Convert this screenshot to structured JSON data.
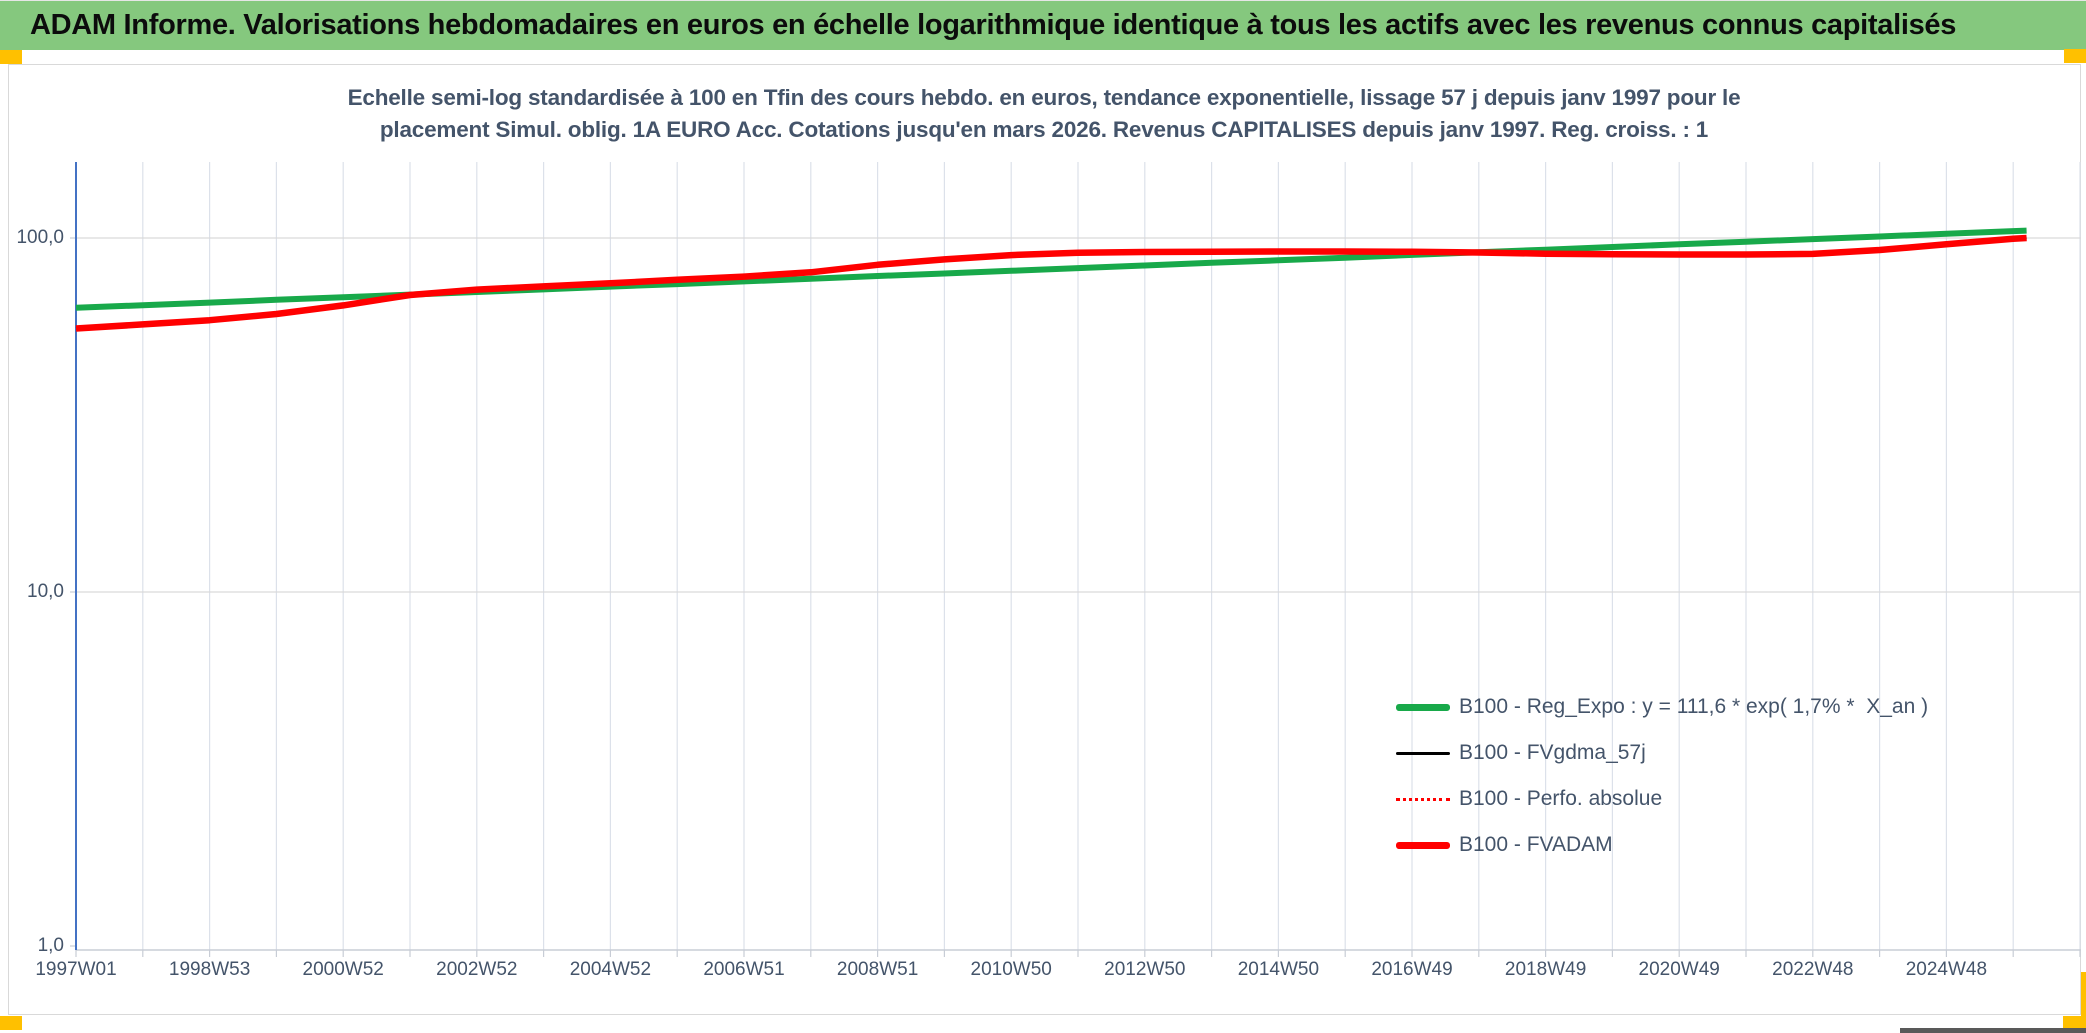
{
  "header": {
    "title": "ADAM Informe. Valorisations hebdomadaires en euros en échelle logarithmique identique à tous les actifs avec les revenus connus capitalisés"
  },
  "chart": {
    "title_line1": "Echelle semi-log standardisée à 100 en Tfin des cours hebdo. en euros, tendance exponentielle, lissage 57 j depuis janv 1997 pour le",
    "title_line2": "placement Simul. oblig. 1A EURO Acc. Cotations jusqu'en mars 2026. Revenus CAPITALISES depuis janv 1997. Reg. croiss. : 1"
  },
  "colors": {
    "header_bg": "#85C87E",
    "marker_yellow": "#FFC000",
    "heading_text": "#44546A",
    "axis_text": "#44546A",
    "axis_line_blue": "#4472C4",
    "axis_line_gray": "#C8CDD6",
    "grid_vertical": "#DCE1EA",
    "grid_horizontal": "#D9D9D9",
    "series_green": "#18A94A",
    "series_red": "#FF0000",
    "series_black": "#000000"
  },
  "chart_data": {
    "type": "line",
    "x_scale": "time-weekly",
    "y_scale": "log",
    "grid": true,
    "legend_position": "inside-right-lower",
    "y_axis": {
      "ticks": [
        {
          "label": "100,0",
          "value": 100
        },
        {
          "label": "10,0",
          "value": 10
        },
        {
          "label": "1,0",
          "value": 1
        }
      ],
      "range": [
        1,
        160
      ]
    },
    "x_axis": {
      "ticks": [
        {
          "label": "1997W01",
          "year": 1997
        },
        {
          "label": "1998W53",
          "year": 1999
        },
        {
          "label": "2000W52",
          "year": 2001
        },
        {
          "label": "2002W52",
          "year": 2003
        },
        {
          "label": "2004W52",
          "year": 2005
        },
        {
          "label": "2006W51",
          "year": 2007
        },
        {
          "label": "2008W51",
          "year": 2009
        },
        {
          "label": "2010W50",
          "year": 2011
        },
        {
          "label": "2012W50",
          "year": 2013
        },
        {
          "label": "2014W50",
          "year": 2015
        },
        {
          "label": "2016W49",
          "year": 2017
        },
        {
          "label": "2018W49",
          "year": 2019
        },
        {
          "label": "2020W49",
          "year": 2021
        },
        {
          "label": "2022W48",
          "year": 2023
        },
        {
          "label": "2024W48",
          "year": 2025
        }
      ],
      "gridline_years": [
        1997,
        2027
      ],
      "range_years": [
        1997,
        2027.05
      ]
    },
    "x_years": [
      1997,
      1998,
      1999,
      2000,
      2001,
      2002,
      2003,
      2004,
      2005,
      2006,
      2007,
      2008,
      2009,
      2010,
      2011,
      2012,
      2013,
      2014,
      2015,
      2016,
      2017,
      2018,
      2019,
      2020,
      2021,
      2022,
      2023,
      2024,
      2025,
      2026,
      2026.2
    ],
    "series": [
      {
        "name": "B100 - Reg_Expo : y = 111,6 * exp( 1,7% *  X_an )",
        "color": "#18A94A",
        "style": "solid",
        "thickness": 6,
        "values": [
          63.5,
          64.6,
          65.7,
          66.9,
          68.0,
          69.2,
          70.4,
          71.6,
          72.9,
          74.1,
          75.4,
          76.7,
          78.1,
          79.4,
          80.8,
          82.2,
          83.6,
          85.1,
          86.5,
          88.0,
          89.6,
          91.1,
          92.7,
          94.3,
          96.0,
          97.6,
          99.3,
          101.0,
          102.8,
          104.6,
          104.9
        ]
      },
      {
        "name": "B100 - FVgdma_57j",
        "color": "#000000",
        "style": "solid",
        "thickness": 2.5,
        "coincides_with": "B100 - FVADAM"
      },
      {
        "name": "B100 - Perfo. absolue",
        "color": "#FF0000",
        "style": "dotted",
        "thickness": 2,
        "coincides_with": "B100 - FVADAM"
      },
      {
        "name": "B100 - FVADAM",
        "color": "#FF0000",
        "style": "solid",
        "thickness": 6.5,
        "values": [
          55.5,
          57.0,
          58.6,
          61.0,
          64.5,
          69.0,
          71.5,
          73.0,
          74.5,
          76.2,
          77.8,
          80.0,
          84.0,
          87.0,
          89.5,
          90.8,
          91.3,
          91.5,
          91.6,
          91.6,
          91.4,
          91.0,
          90.3,
          90.0,
          89.8,
          89.8,
          90.2,
          92.5,
          96.0,
          99.5,
          100.0
        ]
      }
    ]
  }
}
